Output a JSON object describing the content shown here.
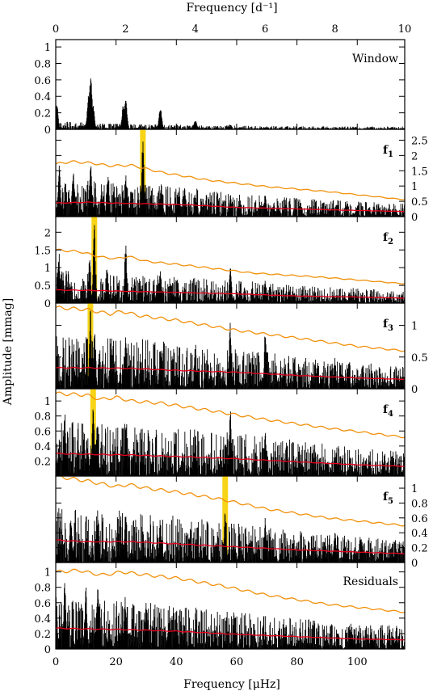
{
  "figure": {
    "top_axis_label": "Frequency [d⁻¹]",
    "bottom_axis_label": "Frequency [μHz]",
    "y_axis_label": "Amplitude [mmag]"
  },
  "colors": {
    "spectrum": "#000000",
    "noise_level": "#e8001c",
    "significance_threshold": "#f0900a",
    "highlight": "#f7d417"
  },
  "chart_data": {
    "type": "line",
    "description_of_series": [
      "amplitude spectrum",
      "noise level (red)",
      "significance threshold (orange)"
    ],
    "x_axis_bottom": {
      "label": "Frequency [μHz]",
      "range": [
        0,
        115.74
      ],
      "ticks": [
        0,
        20,
        40,
        60,
        80,
        100
      ]
    },
    "x_axis_top": {
      "label": "Frequency [d⁻¹]",
      "range": [
        0,
        10
      ],
      "ticks": [
        0,
        2,
        4,
        6,
        8,
        10
      ]
    },
    "panels": [
      {
        "name": "window",
        "label": "Window",
        "y_side": "left",
        "ylim": [
          0,
          1.05
        ],
        "yticks": [
          "0",
          "0.2",
          "0.4",
          "0.6",
          "0.8",
          "1"
        ],
        "has_noise_curves": false,
        "peaks": [
          [
            11.6,
            0.68
          ],
          [
            10.9,
            0.42
          ],
          [
            12.3,
            0.36
          ],
          [
            23.2,
            0.4
          ],
          [
            22.4,
            0.3
          ],
          [
            34.7,
            0.3
          ],
          [
            46.3,
            0.12
          ],
          [
            0.3,
            0.35
          ],
          [
            57.9,
            0.06
          ]
        ],
        "base": 0.05
      },
      {
        "name": "f1",
        "label": "f",
        "label_sub": "1",
        "y_side": "right",
        "ylim": [
          0,
          2.75
        ],
        "yticks": [
          "0",
          "0.5",
          "1",
          "1.5",
          "2",
          "2.5"
        ],
        "has_noise_curves": true,
        "highlight_x": 28.9,
        "threshold": [
          [
            0,
            1.72
          ],
          [
            5,
            1.8
          ],
          [
            12,
            1.75
          ],
          [
            18,
            1.66
          ],
          [
            25,
            1.68
          ],
          [
            35,
            1.45
          ],
          [
            50,
            1.2
          ],
          [
            70,
            0.98
          ],
          [
            90,
            0.82
          ],
          [
            115,
            0.56
          ]
        ],
        "noise": [
          [
            0,
            0.44
          ],
          [
            10,
            0.47
          ],
          [
            20,
            0.44
          ],
          [
            30,
            0.42
          ],
          [
            45,
            0.38
          ],
          [
            60,
            0.3
          ],
          [
            80,
            0.25
          ],
          [
            100,
            0.2
          ],
          [
            115,
            0.17
          ]
        ],
        "peaks": [
          [
            28.9,
            2.65
          ],
          [
            11.6,
            1.9
          ],
          [
            23.2,
            1.55
          ],
          [
            17.4,
            1.45
          ],
          [
            5.8,
            1.5
          ],
          [
            1.2,
            1.7
          ],
          [
            35.0,
            1.1
          ],
          [
            40.5,
            0.85
          ],
          [
            46.3,
            0.8
          ],
          [
            57.9,
            0.75
          ],
          [
            69.5,
            0.7
          ]
        ],
        "base": 0.55
      },
      {
        "name": "f2",
        "label": "f",
        "label_sub": "2",
        "y_side": "left",
        "ylim": [
          0,
          2.35
        ],
        "yticks": [
          "0",
          "0.5",
          "1",
          "1.5",
          "2"
        ],
        "has_noise_curves": true,
        "highlight_x": 12.8,
        "threshold": [
          [
            0,
            1.5
          ],
          [
            8,
            1.45
          ],
          [
            15,
            1.3
          ],
          [
            20,
            1.25
          ],
          [
            24,
            1.32
          ],
          [
            30,
            1.18
          ],
          [
            45,
            1.05
          ],
          [
            65,
            0.85
          ],
          [
            90,
            0.72
          ],
          [
            115,
            0.55
          ]
        ],
        "noise": [
          [
            0,
            0.37
          ],
          [
            10,
            0.36
          ],
          [
            25,
            0.33
          ],
          [
            40,
            0.3
          ],
          [
            60,
            0.26
          ],
          [
            80,
            0.2
          ],
          [
            100,
            0.17
          ],
          [
            115,
            0.14
          ]
        ],
        "peaks": [
          [
            12.8,
            2.3
          ],
          [
            23.2,
            1.75
          ],
          [
            11.2,
            1.4
          ],
          [
            1.0,
            1.55
          ],
          [
            17.0,
            1.1
          ],
          [
            34.7,
            1.0
          ],
          [
            57.9,
            1.1
          ],
          [
            69.5,
            0.7
          ]
        ],
        "base": 0.45
      },
      {
        "name": "f3",
        "label": "f",
        "label_sub": "3",
        "y_side": "right",
        "ylim": [
          0,
          1.3
        ],
        "yticks": [
          "0",
          "0.5",
          "1"
        ],
        "has_noise_curves": true,
        "highlight_x": 11.5,
        "threshold": [
          [
            0,
            1.28
          ],
          [
            10,
            1.25
          ],
          [
            18,
            1.18
          ],
          [
            22,
            1.22
          ],
          [
            28,
            1.15
          ],
          [
            40,
            1.08
          ],
          [
            60,
            0.92
          ],
          [
            80,
            0.8
          ],
          [
            100,
            0.67
          ],
          [
            115,
            0.6
          ]
        ],
        "noise": [
          [
            0,
            0.33
          ],
          [
            10,
            0.33
          ],
          [
            25,
            0.32
          ],
          [
            40,
            0.29
          ],
          [
            60,
            0.26
          ],
          [
            80,
            0.21
          ],
          [
            100,
            0.17
          ],
          [
            115,
            0.15
          ]
        ],
        "peaks": [
          [
            11.5,
            1.28
          ],
          [
            57.9,
            1.1
          ],
          [
            69.5,
            0.95
          ],
          [
            12.9,
            0.9
          ],
          [
            23.2,
            0.9
          ],
          [
            46.3,
            0.7
          ],
          [
            34.7,
            0.7
          ],
          [
            92.6,
            0.5
          ]
        ],
        "base": 0.4
      },
      {
        "name": "f4",
        "label": "f",
        "label_sub": "4",
        "y_side": "left",
        "ylim": [
          0,
          1.12
        ],
        "yticks": [
          "0.2",
          "0.4",
          "0.6",
          "0.8",
          "1"
        ],
        "has_noise_curves": true,
        "highlight_x": 12.4,
        "threshold": [
          [
            0,
            1.1
          ],
          [
            10,
            1.08
          ],
          [
            15,
            1.02
          ],
          [
            20,
            1.05
          ],
          [
            25,
            1.0
          ],
          [
            35,
            0.97
          ],
          [
            50,
            0.88
          ],
          [
            70,
            0.75
          ],
          [
            90,
            0.64
          ],
          [
            115,
            0.52
          ]
        ],
        "noise": [
          [
            0,
            0.3
          ],
          [
            10,
            0.29
          ],
          [
            25,
            0.28
          ],
          [
            40,
            0.26
          ],
          [
            60,
            0.23
          ],
          [
            80,
            0.19
          ],
          [
            100,
            0.15
          ],
          [
            115,
            0.13
          ]
        ],
        "peaks": [
          [
            57.9,
            0.95
          ],
          [
            12.4,
            1.02
          ],
          [
            13.8,
            0.8
          ],
          [
            69.5,
            0.65
          ],
          [
            3.0,
            0.85
          ],
          [
            23.2,
            0.75
          ],
          [
            46.3,
            0.6
          ]
        ],
        "base": 0.35
      },
      {
        "name": "f5",
        "label": "f",
        "label_sub": "5",
        "y_side": "right",
        "ylim": [
          0,
          1.12
        ],
        "yticks": [
          "0",
          "0.2",
          "0.4",
          "0.6",
          "0.8",
          "1"
        ],
        "has_noise_curves": true,
        "highlight_x": 56.2,
        "threshold": [
          [
            0,
            1.16
          ],
          [
            10,
            1.1
          ],
          [
            20,
            1.02
          ],
          [
            24,
            1.05
          ],
          [
            30,
            1.0
          ],
          [
            40,
            0.95
          ],
          [
            55,
            0.85
          ],
          [
            70,
            0.72
          ],
          [
            90,
            0.6
          ],
          [
            115,
            0.5
          ]
        ],
        "noise": [
          [
            0,
            0.3
          ],
          [
            10,
            0.28
          ],
          [
            25,
            0.28
          ],
          [
            40,
            0.25
          ],
          [
            60,
            0.21
          ],
          [
            80,
            0.17
          ],
          [
            100,
            0.14
          ],
          [
            115,
            0.12
          ]
        ],
        "peaks": [
          [
            56.2,
            0.72
          ],
          [
            69.5,
            0.62
          ],
          [
            14.0,
            0.75
          ],
          [
            5.0,
            0.7
          ],
          [
            23.2,
            0.7
          ],
          [
            34.7,
            0.6
          ],
          [
            92.6,
            0.45
          ]
        ],
        "base": 0.35
      },
      {
        "name": "residuals",
        "label": "Residuals",
        "y_side": "left",
        "ylim": [
          0,
          1.08
        ],
        "yticks": [
          "0",
          "0.2",
          "0.4",
          "0.6",
          "0.8",
          "1"
        ],
        "has_noise_curves": true,
        "threshold": [
          [
            0,
            1.0
          ],
          [
            8,
            1.02
          ],
          [
            12,
            0.98
          ],
          [
            16,
            0.96
          ],
          [
            22,
            1.0
          ],
          [
            30,
            0.96
          ],
          [
            40,
            0.92
          ],
          [
            55,
            0.82
          ],
          [
            70,
            0.7
          ],
          [
            90,
            0.58
          ],
          [
            115,
            0.48
          ]
        ],
        "noise": [
          [
            0,
            0.27
          ],
          [
            10,
            0.26
          ],
          [
            25,
            0.25
          ],
          [
            40,
            0.23
          ],
          [
            60,
            0.19
          ],
          [
            80,
            0.16
          ],
          [
            100,
            0.13
          ],
          [
            115,
            0.12
          ]
        ],
        "peaks": [
          [
            3.0,
            0.95
          ],
          [
            14.0,
            0.9
          ],
          [
            10.0,
            0.8
          ],
          [
            23.0,
            0.7
          ],
          [
            30.0,
            0.6
          ],
          [
            40.0,
            0.55
          ]
        ],
        "base": 0.35
      }
    ]
  }
}
